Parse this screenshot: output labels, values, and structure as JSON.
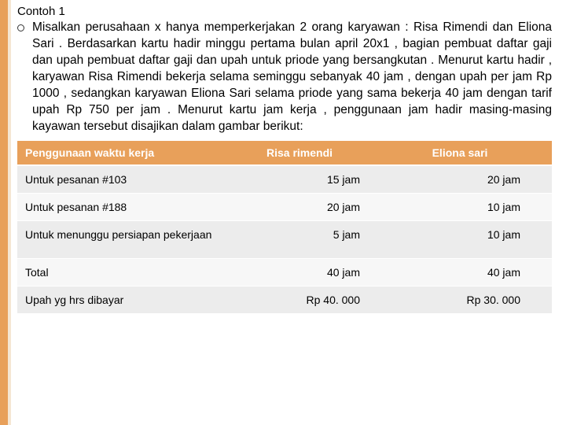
{
  "title": "Contoh 1",
  "paragraph": "Misalkan perusahaan x hanya memperkerjakan 2 orang karyawan : Risa Rimendi dan Eliona Sari . Berdasarkan kartu hadir minggu pertama bulan april 20x1 , bagian pembuat daftar gaji dan upah pembuat daftar gaji dan upah untuk priode yang bersangkutan . Menurut kartu hadir , karyawan Risa Rimendi bekerja selama seminggu sebanyak 40 jam , dengan upah per jam Rp 1000 , sedangkan karyawan Eliona Sari selama priode yang sama bekerja 40 jam dengan tarif upah Rp 750 per jam . Menurut kartu jam kerja , penggunaan jam hadir masing-masing kayawan tersebut disajikan dalam gambar berikut:",
  "table": {
    "type": "table",
    "header_bg": "#e8a05a",
    "header_fg": "#ffffff",
    "row_odd_bg": "#ececec",
    "row_even_bg": "#f7f7f7",
    "columns": [
      "Penggunaan waktu kerja",
      "Risa rimendi",
      "Eliona sari"
    ],
    "rows": [
      {
        "label": "Untuk pesanan #103",
        "risa": "15 jam",
        "eliona": "20 jam"
      },
      {
        "label": "Untuk pesanan #188",
        "risa": "20 jam",
        "eliona": "10 jam"
      },
      {
        "label": "Untuk menunggu persiapan pekerjaan",
        "risa": "5 jam",
        "eliona": "10 jam",
        "tall": true
      },
      {
        "label": "Total",
        "risa": "40 jam",
        "eliona": "40 jam"
      },
      {
        "label": "Upah yg hrs dibayar",
        "risa": "Rp 40. 000",
        "eliona": "Rp 30. 000"
      }
    ]
  }
}
